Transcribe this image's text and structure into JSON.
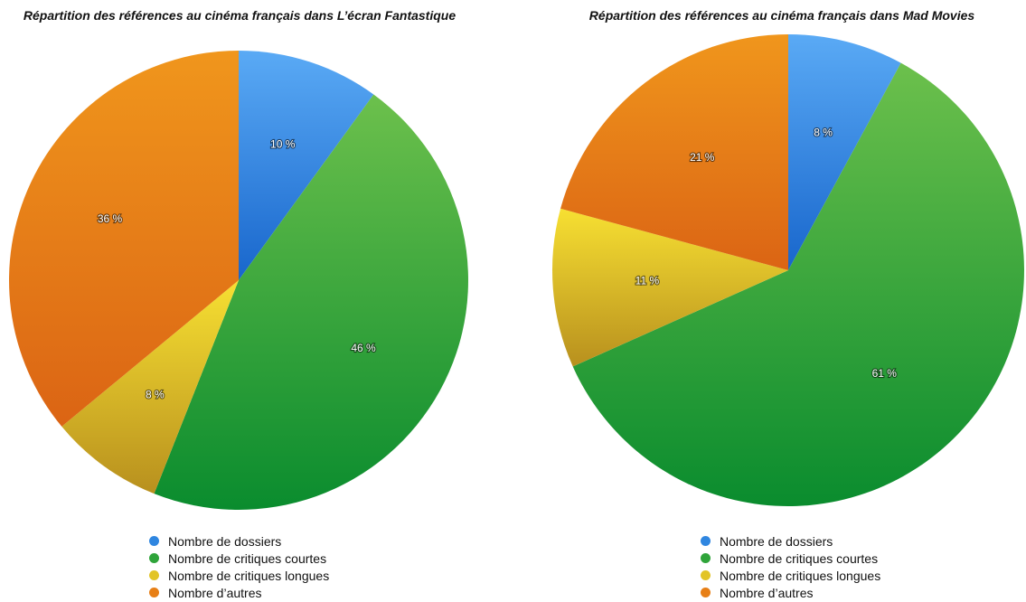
{
  "colors": {
    "dossiers": "#2f86e0",
    "critiques_courtes": "#2fa43a",
    "critiques_longues": "#e2c426",
    "autres": "#e77f16"
  },
  "chart_data": [
    {
      "type": "pie",
      "title": "Répartition des références au cinéma français dans L’écran Fantastique",
      "categories": [
        "Nombre de dossiers",
        "Nombre de critiques courtes",
        "Nombre de critiques longues",
        "Nombre d’autres"
      ],
      "values": [
        10,
        46,
        8,
        36
      ],
      "labels": [
        "10 %",
        "46 %",
        "8 %",
        "36 %"
      ],
      "legend_placement": "bottom"
    },
    {
      "type": "pie",
      "title": "Répartition des références au cinéma français dans Mad Movies",
      "categories": [
        "Nombre de dossiers",
        "Nombre de critiques courtes",
        "Nombre de critiques longues",
        "Nombre d’autres"
      ],
      "values": [
        8,
        61,
        11,
        21
      ],
      "labels": [
        "8 %",
        "61 %",
        "11 %",
        "21 %"
      ],
      "legend_placement": "bottom"
    }
  ]
}
